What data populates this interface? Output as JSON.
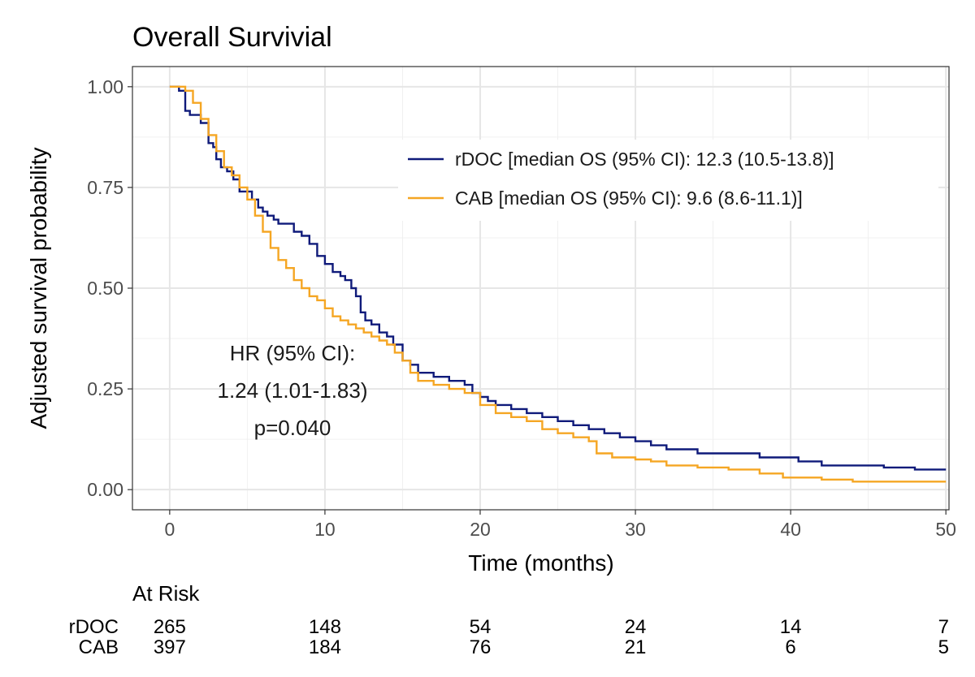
{
  "chart_data": {
    "type": "line",
    "title": "Overall Survivial",
    "xlabel": "Time (months)",
    "ylabel": "Adjusted survival probability",
    "xlim": [
      -2.4,
      50.2
    ],
    "ylim": [
      -0.05,
      1.05
    ],
    "x_ticks": [
      0,
      10,
      20,
      30,
      40,
      50
    ],
    "x_tick_labels": [
      "0",
      "10",
      "20",
      "30",
      "40",
      "50"
    ],
    "y_ticks": [
      0,
      0.25,
      0.5,
      0.75,
      1.0
    ],
    "y_tick_labels": [
      "0.00",
      "0.25",
      "0.50",
      "0.75",
      "1.00"
    ],
    "grid": true,
    "legend_position": "top-right",
    "series": [
      {
        "name": "rDOC [median OS (95% CI): 12.3 (10.5-13.8)]",
        "color": "#0f1a7a",
        "step": true,
        "x": [
          0,
          0.6,
          1.0,
          1.3,
          2.0,
          2.5,
          2.8,
          3.0,
          3.3,
          3.7,
          4.1,
          4.5,
          5.0,
          5.3,
          5.7,
          6.0,
          6.3,
          6.7,
          7.0,
          7.5,
          8.0,
          8.5,
          9.0,
          9.5,
          10.0,
          10.5,
          11.0,
          11.3,
          11.7,
          12.0,
          12.3,
          12.6,
          13.0,
          13.5,
          14.0,
          14.4,
          15.0,
          15.5,
          16.0,
          16.5,
          17.0,
          18.0,
          19.0,
          19.5,
          20.0,
          20.5,
          21.0,
          22.0,
          23.0,
          24.0,
          25.0,
          26.0,
          27.0,
          28.0,
          29.0,
          30.0,
          31.0,
          32.0,
          33.0,
          34.0,
          35.0,
          36.0,
          38.0,
          39.0,
          40.5,
          42.0,
          44.0,
          46.0,
          48.0,
          50.0
        ],
        "y": [
          1.0,
          0.99,
          0.94,
          0.93,
          0.91,
          0.86,
          0.85,
          0.82,
          0.8,
          0.79,
          0.77,
          0.74,
          0.74,
          0.72,
          0.7,
          0.69,
          0.68,
          0.67,
          0.66,
          0.66,
          0.64,
          0.63,
          0.61,
          0.58,
          0.56,
          0.54,
          0.53,
          0.52,
          0.5,
          0.48,
          0.44,
          0.42,
          0.41,
          0.39,
          0.38,
          0.36,
          0.32,
          0.31,
          0.29,
          0.29,
          0.28,
          0.27,
          0.26,
          0.24,
          0.23,
          0.22,
          0.21,
          0.2,
          0.19,
          0.18,
          0.17,
          0.16,
          0.15,
          0.14,
          0.13,
          0.12,
          0.11,
          0.1,
          0.1,
          0.09,
          0.09,
          0.09,
          0.08,
          0.08,
          0.07,
          0.06,
          0.06,
          0.055,
          0.05,
          0.05
        ]
      },
      {
        "name": "CAB [median OS (95% CI): 9.6 (8.6-11.1)]",
        "color": "#f5a623",
        "step": true,
        "x": [
          0,
          1.0,
          1.5,
          2.0,
          2.5,
          3.0,
          3.5,
          4.0,
          4.5,
          5.0,
          5.5,
          6.0,
          6.5,
          7.0,
          7.5,
          8.0,
          8.5,
          9.0,
          9.5,
          10.0,
          10.5,
          11.0,
          11.5,
          12.0,
          12.5,
          13.0,
          13.5,
          14.0,
          14.5,
          15.0,
          15.5,
          16.0,
          17.0,
          18.0,
          19.0,
          20.0,
          21.0,
          22.0,
          23.0,
          24.0,
          25.0,
          26.0,
          27.0,
          27.5,
          28.5,
          30.0,
          31.0,
          32.0,
          34.0,
          36.0,
          38.0,
          39.5,
          42.0,
          44.0,
          46.0,
          48.0,
          50.0
        ],
        "y": [
          1.0,
          0.99,
          0.96,
          0.92,
          0.88,
          0.84,
          0.8,
          0.78,
          0.75,
          0.72,
          0.68,
          0.64,
          0.6,
          0.57,
          0.55,
          0.52,
          0.5,
          0.48,
          0.47,
          0.45,
          0.43,
          0.42,
          0.41,
          0.4,
          0.39,
          0.38,
          0.37,
          0.36,
          0.34,
          0.32,
          0.29,
          0.27,
          0.26,
          0.25,
          0.24,
          0.21,
          0.19,
          0.18,
          0.17,
          0.15,
          0.14,
          0.13,
          0.12,
          0.09,
          0.08,
          0.075,
          0.07,
          0.06,
          0.055,
          0.05,
          0.04,
          0.03,
          0.025,
          0.02,
          0.02,
          0.02,
          0.02
        ]
      }
    ],
    "annotation": {
      "line1": "HR (95% CI):",
      "line2": "1.24 (1.01-1.83)",
      "line3": "p=0.040"
    },
    "at_risk": {
      "title": "At Risk",
      "times": [
        0,
        10,
        20,
        30,
        40,
        50
      ],
      "rows": [
        {
          "label": "rDOC",
          "counts": [
            "265",
            "148",
            "54",
            "24",
            "14",
            "7"
          ]
        },
        {
          "label": "CAB",
          "counts": [
            "397",
            "184",
            "76",
            "21",
            "6",
            "5"
          ]
        }
      ]
    }
  }
}
